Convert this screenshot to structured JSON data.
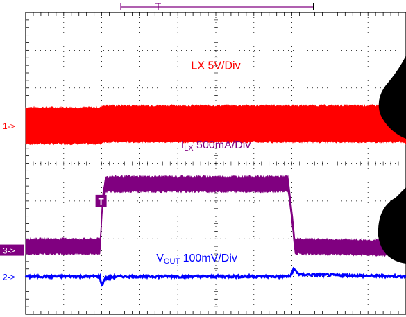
{
  "chart_data": {
    "type": "line",
    "title": "",
    "xlabel": "",
    "ylabel": "",
    "grid": true,
    "grid_divisions": {
      "x": 10,
      "y": 8
    },
    "x_unit": "div",
    "xlim": [
      0,
      10
    ],
    "y_unit": "div",
    "ylim": [
      -4,
      4
    ],
    "trigger": {
      "x": 2,
      "y": -1,
      "label": "T"
    },
    "series": [
      {
        "id": "ch1",
        "name": "LX",
        "sub": "",
        "scale": "5V/Div",
        "color": "#ff0000",
        "marker": "1->",
        "marker_level": 1.0,
        "label_pos": {
          "x": 5,
          "y": 2.5
        },
        "noise_band": true,
        "points": [
          [
            0,
            1.0
          ],
          [
            2,
            1.0
          ],
          [
            2.02,
            1.05
          ],
          [
            9.9,
            1.05
          ],
          [
            10,
            1.0
          ]
        ],
        "band_half_height": 0.48
      },
      {
        "id": "ch3",
        "name": "I",
        "sub": "LX",
        "scale": " 500mA/Div",
        "color": "#800080",
        "marker": "3->",
        "marker_level": -2.3,
        "label_pos": {
          "x": 5,
          "y": 0.4
        },
        "noise_band": true,
        "points": [
          [
            0,
            -2.2
          ],
          [
            1.96,
            -2.2
          ],
          [
            2.02,
            -1.0
          ],
          [
            2.1,
            -0.55
          ],
          [
            6.9,
            -0.55
          ],
          [
            7.0,
            -1.4
          ],
          [
            7.08,
            -2.2
          ],
          [
            10,
            -2.25
          ]
        ],
        "band_half_height": 0.2
      },
      {
        "id": "ch2",
        "name": "V",
        "sub": "OUT",
        "scale": " 100mV/Div",
        "color": "#0000ff",
        "marker": "2->",
        "marker_level": -3.0,
        "label_pos": {
          "x": 4.5,
          "y": -2.6
        },
        "noise_band": false,
        "points": [
          [
            0,
            -3.0
          ],
          [
            1.95,
            -3.0
          ],
          [
            2.0,
            -3.25
          ],
          [
            2.08,
            -3.05
          ],
          [
            2.4,
            -3.0
          ],
          [
            6.95,
            -3.0
          ],
          [
            7.05,
            -2.8
          ],
          [
            7.2,
            -2.95
          ],
          [
            10,
            -3.0
          ]
        ],
        "band_half_height": 0.03
      }
    ]
  }
}
